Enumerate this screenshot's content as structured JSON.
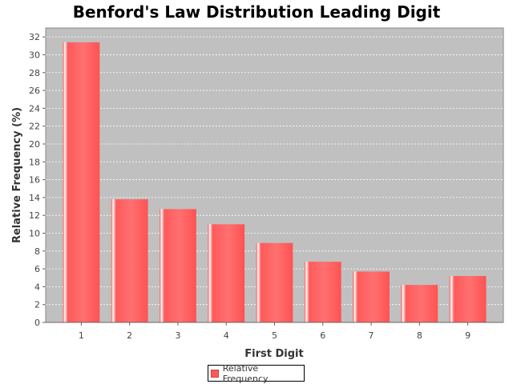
{
  "chart_data": {
    "type": "bar",
    "title": "Benford's Law Distribution Leading Digit",
    "xlabel": "First Digit",
    "ylabel": "Relative Frequency (%)",
    "categories": [
      "1",
      "2",
      "3",
      "4",
      "5",
      "6",
      "7",
      "8",
      "9"
    ],
    "series": [
      {
        "name": "Relative Frequency",
        "values": [
          31.4,
          13.8,
          12.7,
          11.0,
          8.9,
          6.8,
          5.7,
          4.2,
          5.2
        ],
        "color": "#ff5a5a"
      }
    ],
    "ylim": [
      0,
      33
    ],
    "yticks": [
      0,
      2,
      4,
      6,
      8,
      10,
      12,
      14,
      16,
      18,
      20,
      22,
      24,
      26,
      28,
      30,
      32
    ],
    "grid": true,
    "legend": "bottom-center",
    "plot_background": "#c0c0c0"
  }
}
